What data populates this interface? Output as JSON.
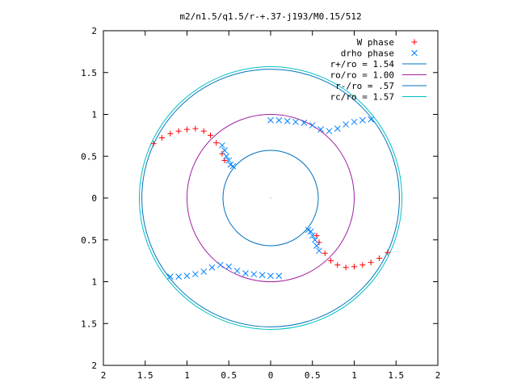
{
  "chart_data": {
    "type": "scatter",
    "title": "m2/n1.5/q1.5/r-+.37-j193/M0.15/512",
    "xlabel": "",
    "ylabel": "",
    "xlim": [
      -2,
      2
    ],
    "ylim": [
      -2,
      2
    ],
    "x_tick_labels": [
      "2",
      "1.5",
      "1",
      "0.5",
      "0",
      "0.5",
      "1",
      "1.5",
      "2"
    ],
    "y_tick_labels": [
      "2",
      "1.5",
      "1",
      "0.5",
      "0",
      "0.5",
      "1",
      "1.5",
      "2"
    ],
    "x_tick_values": [
      -2,
      -1.5,
      -1,
      -0.5,
      0,
      0.5,
      1,
      1.5,
      2
    ],
    "y_tick_values": [
      -2,
      -1.5,
      -1,
      -0.5,
      0,
      0.5,
      1,
      1.5,
      2
    ],
    "grid": false,
    "legend_position": "top-right",
    "series": [
      {
        "name": "W phase",
        "marker": "plus",
        "color": "#ff0000",
        "x": [
          -1.4,
          -1.3,
          -1.2,
          -1.1,
          -1.0,
          -0.9,
          -0.8,
          -0.72,
          -0.65,
          -0.58,
          -0.55,
          0.55,
          0.58,
          0.65,
          0.72,
          0.8,
          0.9,
          1.0,
          1.1,
          1.2,
          1.3,
          1.4
        ],
        "y": [
          0.65,
          0.72,
          0.77,
          0.8,
          0.82,
          0.83,
          0.8,
          0.75,
          0.66,
          0.53,
          0.45,
          -0.45,
          -0.53,
          -0.66,
          -0.75,
          -0.8,
          -0.83,
          -0.82,
          -0.8,
          -0.77,
          -0.72,
          -0.65
        ]
      },
      {
        "name": "drho phase",
        "marker": "cross",
        "color": "#0080ff",
        "x": [
          -0.58,
          -0.55,
          -0.53,
          -0.5,
          -0.48,
          -0.45,
          0.0,
          0.1,
          0.2,
          0.3,
          0.4,
          0.5,
          0.6,
          0.7,
          0.8,
          0.9,
          1.0,
          1.1,
          1.2,
          0.58,
          0.55,
          0.53,
          0.5,
          0.48,
          0.45,
          0.1,
          0.0,
          -0.1,
          -0.2,
          -0.3,
          -0.4,
          -0.5,
          -0.6,
          -0.7,
          -0.8,
          -0.9,
          -1.0,
          -1.1,
          -1.2
        ],
        "y": [
          0.63,
          0.57,
          0.5,
          0.45,
          0.4,
          0.38,
          0.93,
          0.93,
          0.92,
          0.91,
          0.9,
          0.87,
          0.82,
          0.8,
          0.83,
          0.88,
          0.91,
          0.93,
          0.94,
          -0.63,
          -0.57,
          -0.5,
          -0.45,
          -0.4,
          -0.38,
          -0.93,
          -0.93,
          -0.92,
          -0.91,
          -0.9,
          -0.87,
          -0.82,
          -0.8,
          -0.83,
          -0.88,
          -0.91,
          -0.93,
          -0.94,
          -0.94
        ]
      },
      {
        "name": "r+/ro = 1.54",
        "type": "circle",
        "radius": 1.54,
        "color": "#0072bd"
      },
      {
        "name": "ro/ro = 1.00",
        "type": "circle",
        "radius": 1.0,
        "color": "#a020a0"
      },
      {
        "name": "r-/ro = .57",
        "type": "circle",
        "radius": 0.57,
        "color": "#0072bd"
      },
      {
        "name": "rc/ro = 1.57",
        "type": "circle",
        "radius": 1.57,
        "color": "#00c0c0"
      }
    ]
  }
}
